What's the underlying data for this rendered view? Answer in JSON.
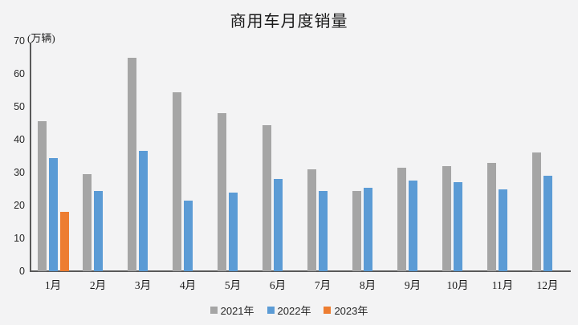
{
  "chart_data": {
    "type": "bar",
    "title": "商用车月度销量",
    "ylabel": "(万辆)",
    "xlabel": "",
    "categories": [
      "1月",
      "2月",
      "3月",
      "4月",
      "5月",
      "6月",
      "7月",
      "8月",
      "9月",
      "10月",
      "11月",
      "12月"
    ],
    "series": [
      {
        "name": "2021年",
        "color": "#A5A5A5",
        "values": [
          45.5,
          29.5,
          65,
          54.5,
          48,
          44.5,
          31,
          24.5,
          31.5,
          32,
          33,
          36
        ]
      },
      {
        "name": "2022年",
        "color": "#5B9BD5",
        "values": [
          34.5,
          24.5,
          36.5,
          21.5,
          24,
          28,
          24.5,
          25.5,
          27.5,
          27,
          25,
          29
        ]
      },
      {
        "name": "2023年",
        "color": "#ED7D31",
        "values": [
          18,
          null,
          null,
          null,
          null,
          null,
          null,
          null,
          null,
          null,
          null,
          null
        ]
      }
    ],
    "ylim": [
      0,
      70
    ],
    "yticks": [
      0,
      10,
      20,
      30,
      40,
      50,
      60,
      70
    ],
    "grid": false,
    "legend_position": "bottom",
    "axis_color": "#595959",
    "background_color": "#F3F3F4"
  }
}
